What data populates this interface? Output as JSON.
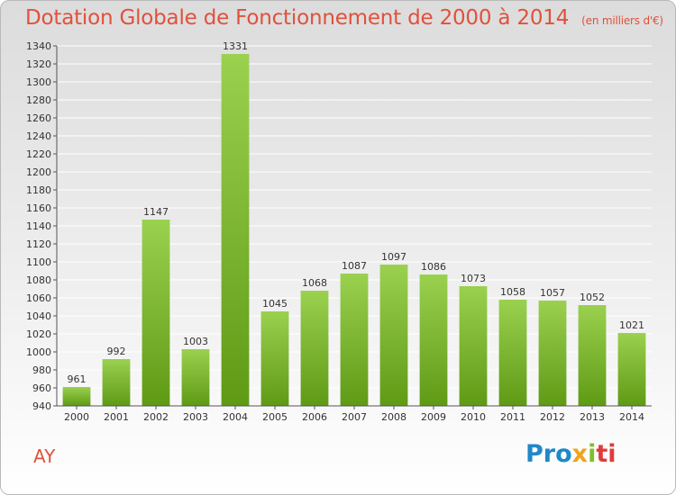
{
  "title": "Dotation Globale de Fonctionnement de 2000 à 2014",
  "units": "(en milliers d'€)",
  "commune": "AY",
  "logo": {
    "part1": "Pro",
    "part2": "x",
    "part3": "i",
    "part4": "ti"
  },
  "colors": {
    "title": "#e0513c",
    "bar_top": "#9ad14f",
    "bar_bottom": "#5f9a15",
    "grid": "#ffffff"
  },
  "chart_data": {
    "type": "bar",
    "title": "Dotation Globale de Fonctionnement de 2000 à 2014",
    "xlabel": "",
    "ylabel": "",
    "categories": [
      "2000",
      "2001",
      "2002",
      "2003",
      "2004",
      "2005",
      "2006",
      "2007",
      "2008",
      "2009",
      "2010",
      "2011",
      "2012",
      "2013",
      "2014"
    ],
    "values": [
      961,
      992,
      1147,
      1003,
      1331,
      1045,
      1068,
      1087,
      1097,
      1086,
      1073,
      1058,
      1057,
      1052,
      1021
    ],
    "ylim": [
      940,
      1340
    ],
    "ytick_step": 20,
    "grid": true,
    "data_labels": true
  }
}
